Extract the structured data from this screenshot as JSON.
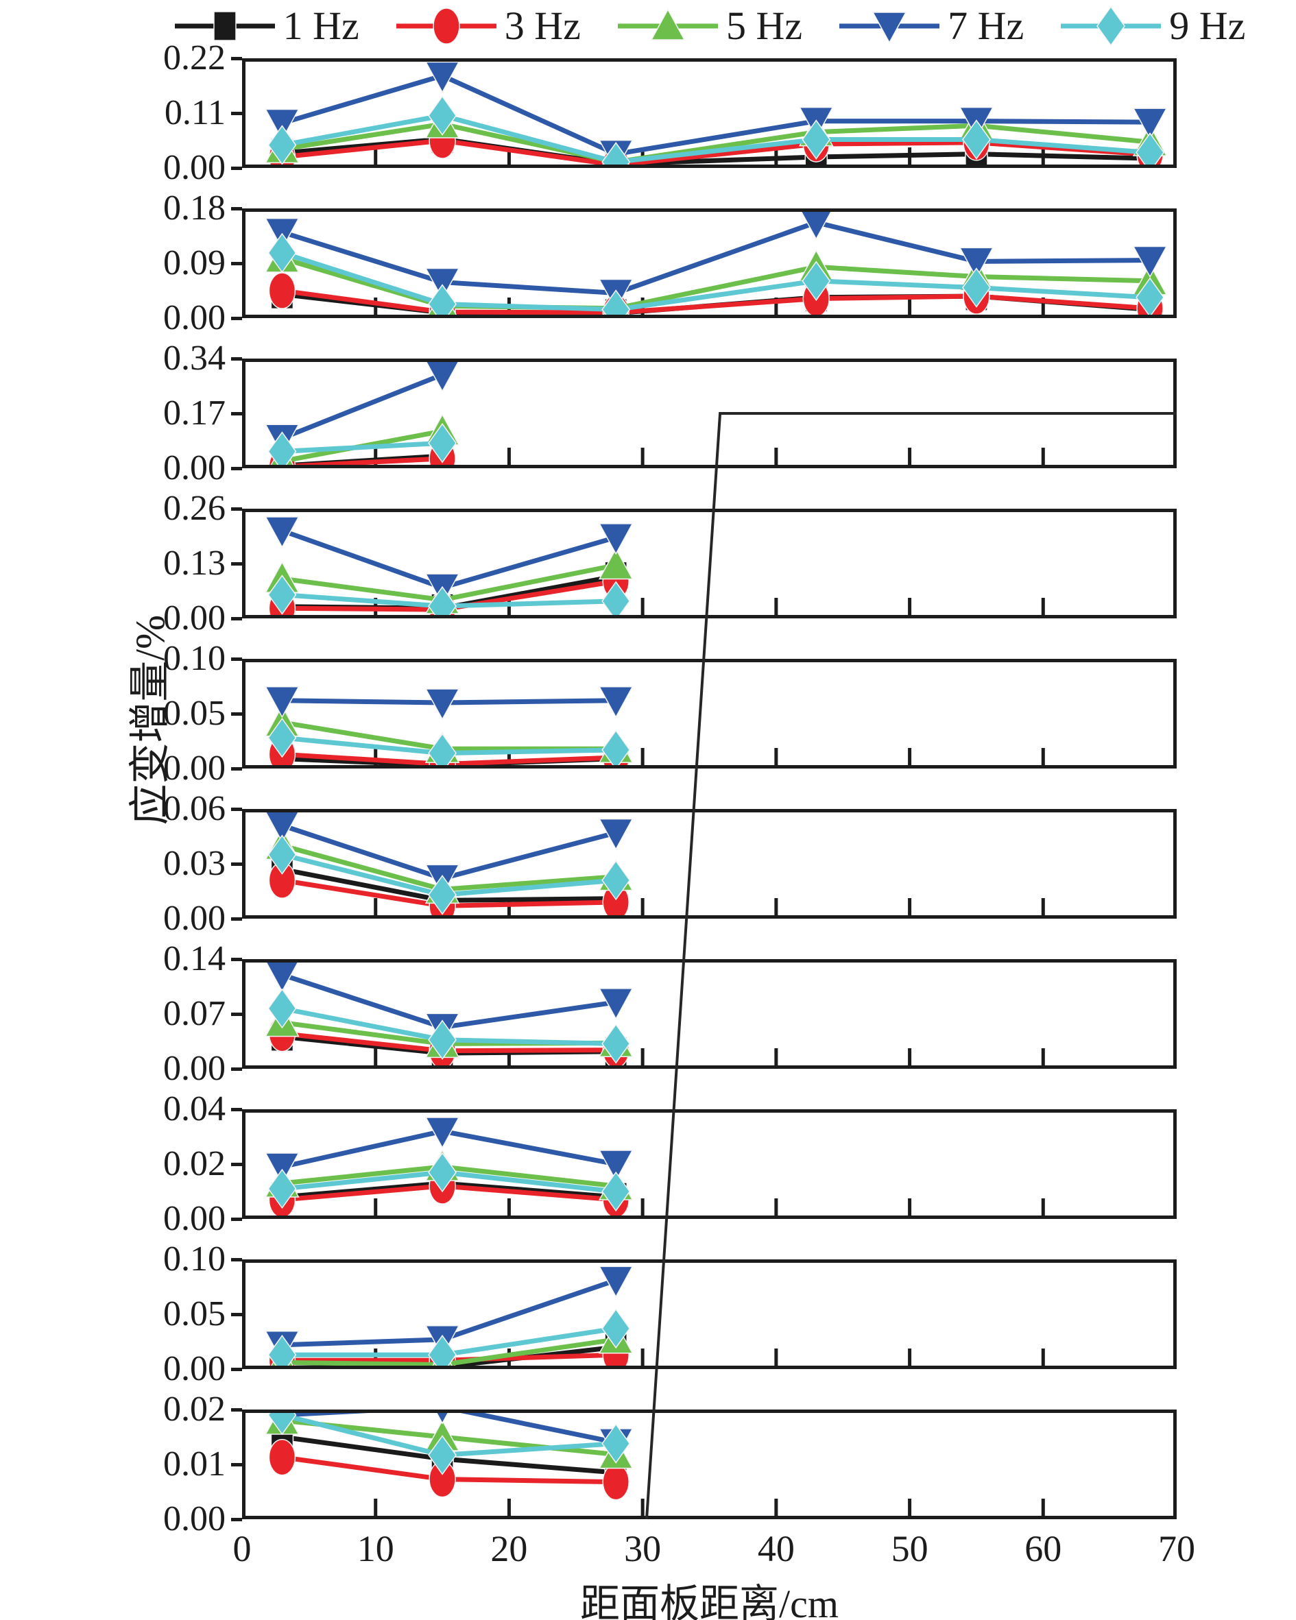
{
  "y_axis_label": "应变增量/%",
  "x_axis": {
    "label": "距面板距离/cm",
    "ticks": [
      "0",
      "10",
      "20",
      "30",
      "40",
      "50",
      "60",
      "70"
    ],
    "range": [
      0,
      70
    ]
  },
  "legend": {
    "items": [
      {
        "label": "1 Hz",
        "color": "#1a1a1a",
        "marker": "square"
      },
      {
        "label": "3 Hz",
        "color": "#e8242a",
        "marker": "circle"
      },
      {
        "label": "5 Hz",
        "color": "#6cbf4b",
        "marker": "triangle-up"
      },
      {
        "label": "7 Hz",
        "color": "#2e59a8",
        "marker": "triangle-down"
      },
      {
        "label": "9 Hz",
        "color": "#5ec8d2",
        "marker": "diamond"
      }
    ]
  },
  "chart_data": {
    "type": "line",
    "title": "",
    "xlabel": "距面板距离/cm",
    "ylabel": "应变增量/%",
    "x_range_cm": [
      0,
      70
    ],
    "series_names": [
      "1 Hz",
      "3 Hz",
      "5 Hz",
      "7 Hz",
      "9 Hz"
    ],
    "face_line": {
      "description": "face position annotation line",
      "horizontal_segment": {
        "panel_index": 2,
        "level": 0.17,
        "from_cm": 35.8,
        "to_cm": 70
      },
      "diagonal_end": {
        "cm": 30.3,
        "at": "bottom of last panel"
      }
    },
    "panels": [
      {
        "ymax": 0.22,
        "yticks": [
          "0.22",
          "0.11",
          "0.00"
        ],
        "x": [
          3,
          15,
          28,
          43,
          55,
          68
        ],
        "series": [
          {
            "name": "1 Hz",
            "values": [
              0.03,
              0.058,
              0.008,
              0.022,
              0.028,
              0.019
            ]
          },
          {
            "name": "3 Hz",
            "values": [
              0.022,
              0.055,
              0.006,
              0.048,
              0.051,
              0.027
            ]
          },
          {
            "name": "5 Hz",
            "values": [
              0.038,
              0.088,
              0.012,
              0.072,
              0.085,
              0.052
            ]
          },
          {
            "name": "7 Hz",
            "values": [
              0.09,
              0.185,
              0.028,
              0.094,
              0.094,
              0.092
            ]
          },
          {
            "name": "9 Hz",
            "values": [
              0.046,
              0.105,
              0.012,
              0.057,
              0.057,
              0.031
            ]
          }
        ]
      },
      {
        "ymax": 0.18,
        "yticks": [
          "0.18",
          "0.09",
          "0.00"
        ],
        "x": [
          3,
          15,
          28,
          43,
          55,
          68
        ],
        "series": [
          {
            "name": "1 Hz",
            "values": [
              0.039,
              0.009,
              0.008,
              0.034,
              0.036,
              0.014
            ]
          },
          {
            "name": "3 Hz",
            "values": [
              0.045,
              0.01,
              0.009,
              0.032,
              0.036,
              0.016
            ]
          },
          {
            "name": "5 Hz",
            "values": [
              0.098,
              0.02,
              0.016,
              0.084,
              0.068,
              0.061
            ]
          },
          {
            "name": "7 Hz",
            "values": [
              0.141,
              0.059,
              0.041,
              0.157,
              0.093,
              0.095
            ]
          },
          {
            "name": "9 Hz",
            "values": [
              0.107,
              0.023,
              0.014,
              0.061,
              0.05,
              0.034
            ]
          }
        ]
      },
      {
        "ymax": 0.34,
        "yticks": [
          "0.34",
          "0.17",
          "0.00"
        ],
        "x": [
          3,
          15
        ],
        "series": [
          {
            "name": "1 Hz",
            "values": [
              0.008,
              0.038
            ]
          },
          {
            "name": "3 Hz",
            "values": [
              0.005,
              0.03
            ]
          },
          {
            "name": "5 Hz",
            "values": [
              0.022,
              0.115
            ]
          },
          {
            "name": "7 Hz",
            "values": [
              0.093,
              0.29
            ]
          },
          {
            "name": "9 Hz",
            "values": [
              0.052,
              0.078
            ]
          }
        ]
      },
      {
        "ymax": 0.26,
        "yticks": [
          "0.26",
          "0.13",
          "0.00"
        ],
        "x": [
          3,
          15,
          28
        ],
        "series": [
          {
            "name": "1 Hz",
            "values": [
              0.028,
              0.024,
              0.1
            ]
          },
          {
            "name": "3 Hz",
            "values": [
              0.024,
              0.021,
              0.088
            ]
          },
          {
            "name": "5 Hz",
            "values": [
              0.094,
              0.044,
              0.126
            ]
          },
          {
            "name": "7 Hz",
            "values": [
              0.208,
              0.073,
              0.192
            ]
          },
          {
            "name": "9 Hz",
            "values": [
              0.056,
              0.029,
              0.041
            ]
          }
        ]
      },
      {
        "ymax": 0.1,
        "yticks": [
          "0.10",
          "0.05",
          "0.00"
        ],
        "x": [
          3,
          15,
          28
        ],
        "series": [
          {
            "name": "1 Hz",
            "values": [
              0.009,
              0.003,
              0.009
            ]
          },
          {
            "name": "3 Hz",
            "values": [
              0.013,
              0.004,
              0.01
            ]
          },
          {
            "name": "5 Hz",
            "values": [
              0.042,
              0.018,
              0.018
            ]
          },
          {
            "name": "7 Hz",
            "values": [
              0.062,
              0.06,
              0.062
            ]
          },
          {
            "name": "9 Hz",
            "values": [
              0.028,
              0.014,
              0.017
            ]
          }
        ]
      },
      {
        "ymax": 0.06,
        "yticks": [
          "0.06",
          "0.03",
          "0.00"
        ],
        "x": [
          3,
          15,
          28
        ],
        "series": [
          {
            "name": "1 Hz",
            "values": [
              0.027,
              0.01,
              0.011
            ]
          },
          {
            "name": "3 Hz",
            "values": [
              0.021,
              0.007,
              0.009
            ]
          },
          {
            "name": "5 Hz",
            "values": [
              0.04,
              0.016,
              0.023
            ]
          },
          {
            "name": "7 Hz",
            "values": [
              0.051,
              0.022,
              0.047
            ]
          },
          {
            "name": "9 Hz",
            "values": [
              0.035,
              0.013,
              0.021
            ]
          }
        ]
      },
      {
        "ymax": 0.14,
        "yticks": [
          "0.14",
          "0.07",
          "0.00"
        ],
        "x": [
          3,
          15,
          28
        ],
        "series": [
          {
            "name": "1 Hz",
            "values": [
              0.041,
              0.02,
              0.022
            ]
          },
          {
            "name": "3 Hz",
            "values": [
              0.045,
              0.023,
              0.024
            ]
          },
          {
            "name": "5 Hz",
            "values": [
              0.059,
              0.032,
              0.033
            ]
          },
          {
            "name": "7 Hz",
            "values": [
              0.12,
              0.053,
              0.085
            ]
          },
          {
            "name": "9 Hz",
            "values": [
              0.077,
              0.037,
              0.032
            ]
          }
        ]
      },
      {
        "ymax": 0.04,
        "yticks": [
          "0.04",
          "0.02",
          "0.00"
        ],
        "x": [
          3,
          15,
          28
        ],
        "series": [
          {
            "name": "1 Hz",
            "values": [
              0.008,
              0.013,
              0.008
            ]
          },
          {
            "name": "3 Hz",
            "values": [
              0.007,
              0.012,
              0.007
            ]
          },
          {
            "name": "5 Hz",
            "values": [
              0.013,
              0.019,
              0.012
            ]
          },
          {
            "name": "7 Hz",
            "values": [
              0.019,
              0.032,
              0.02
            ]
          },
          {
            "name": "9 Hz",
            "values": [
              0.011,
              0.017,
              0.01
            ]
          }
        ]
      },
      {
        "ymax": 0.1,
        "yticks": [
          "0.10",
          "0.05",
          "0.00"
        ],
        "x": [
          3,
          15,
          28
        ],
        "series": [
          {
            "name": "1 Hz",
            "values": [
              0.001,
              0.002,
              0.02
            ]
          },
          {
            "name": "3 Hz",
            "values": [
              0.008,
              0.008,
              0.013
            ]
          },
          {
            "name": "5 Hz",
            "values": [
              0.006,
              0.004,
              0.027
            ]
          },
          {
            "name": "7 Hz",
            "values": [
              0.022,
              0.027,
              0.081
            ]
          },
          {
            "name": "9 Hz",
            "values": [
              0.013,
              0.013,
              0.037
            ]
          }
        ]
      },
      {
        "ymax": 0.02,
        "yticks": [
          "0.02",
          "0.01",
          "0.00"
        ],
        "x": [
          3,
          15,
          28
        ],
        "series": [
          {
            "name": "1 Hz",
            "values": [
              0.015,
              0.011,
              0.0085
            ]
          },
          {
            "name": "3 Hz",
            "values": [
              0.0113,
              0.0073,
              0.0068
            ]
          },
          {
            "name": "5 Hz",
            "values": [
              0.018,
              0.015,
              0.0118
            ]
          },
          {
            "name": "7 Hz",
            "values": [
              0.019,
              0.0205,
              0.014
            ]
          },
          {
            "name": "9 Hz",
            "values": [
              0.019,
              0.0117,
              0.0138
            ]
          }
        ]
      }
    ]
  }
}
